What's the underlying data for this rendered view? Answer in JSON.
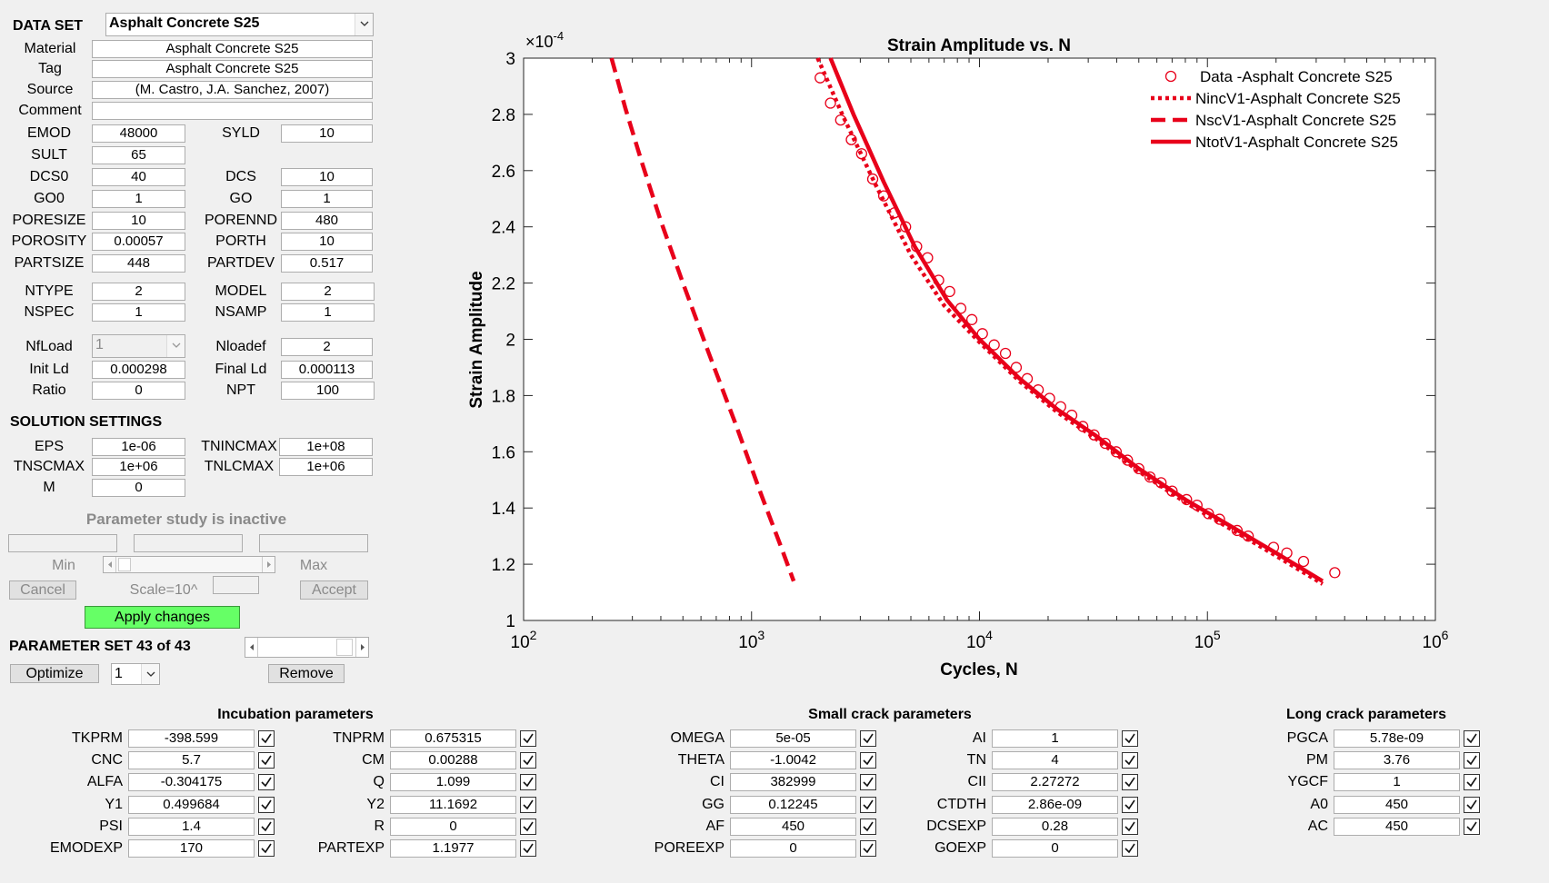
{
  "dataset": {
    "label": "DATA SET",
    "selected": "Asphalt Concrete S25"
  },
  "info": [
    {
      "label": "Material",
      "value": "Asphalt Concrete S25"
    },
    {
      "label": "Tag",
      "value": "Asphalt Concrete S25"
    },
    {
      "label": "Source",
      "value": "(M. Castro, J.A. Sanchez, 2007)"
    },
    {
      "label": "Comment",
      "value": ""
    }
  ],
  "props": [
    {
      "label": "EMOD",
      "value": "48000"
    },
    {
      "label": "SYLD",
      "value": "10"
    },
    {
      "label": "SULT",
      "value": "65"
    },
    {
      "label": "DCS0",
      "value": "40"
    },
    {
      "label": "DCS",
      "value": "10"
    },
    {
      "label": "GO0",
      "value": "1"
    },
    {
      "label": "GO",
      "value": "1"
    },
    {
      "label": "PORESIZE",
      "value": "10"
    },
    {
      "label": "PORENND",
      "value": "480"
    },
    {
      "label": "POROSITY",
      "value": "0.00057"
    },
    {
      "label": "PORTH",
      "value": "10"
    },
    {
      "label": "PARTSIZE",
      "value": "448"
    },
    {
      "label": "PARTDEV",
      "value": "0.517"
    },
    {
      "label": "NTYPE",
      "value": "2"
    },
    {
      "label": "MODEL",
      "value": "2"
    },
    {
      "label": "NSPEC",
      "value": "1"
    },
    {
      "label": "NSAMP",
      "value": "1"
    },
    {
      "label": "NfLoad",
      "value": "1"
    },
    {
      "label": "Nloadef",
      "value": "2"
    },
    {
      "label": "Init Ld",
      "value": "0.000298"
    },
    {
      "label": "Final Ld",
      "value": "0.000113"
    },
    {
      "label": "Ratio",
      "value": "0"
    },
    {
      "label": "NPT",
      "value": "100"
    }
  ],
  "solution": {
    "title": "SOLUTION SETTINGS",
    "fields": [
      {
        "label": "EPS",
        "value": "1e-06"
      },
      {
        "label": "TNINCMAX",
        "value": "1e+08"
      },
      {
        "label": "TNSCMAX",
        "value": "1e+06"
      },
      {
        "label": "TNLCMAX",
        "value": "1e+06"
      },
      {
        "label": "M",
        "value": "0"
      }
    ]
  },
  "study": {
    "status": "Parameter study is inactive",
    "min_label": "Min",
    "max_label": "Max",
    "cancel": "Cancel",
    "scale": "Scale=10^",
    "accept": "Accept"
  },
  "apply_label": "Apply changes",
  "param_set": {
    "label": "PARAMETER SET 43 of 43",
    "optimize": "Optimize",
    "opt_value": "1",
    "remove": "Remove"
  },
  "chart_data": {
    "type": "line",
    "title": "Strain Amplitude vs. N",
    "xlabel": "Cycles, N",
    "ylabel": "Strain Amplitude",
    "x_scale": "log",
    "xlim": [
      100,
      1000000
    ],
    "ylim": [
      1,
      3
    ],
    "y_multiplier": "×10",
    "y_multiplier_exp": "-4",
    "x_ticks": [
      {
        "base": "10",
        "exp": "2"
      },
      {
        "base": "10",
        "exp": "3"
      },
      {
        "base": "10",
        "exp": "4"
      },
      {
        "base": "10",
        "exp": "5"
      },
      {
        "base": "10",
        "exp": "6"
      }
    ],
    "y_ticks": [
      "1",
      "1.2",
      "1.4",
      "1.6",
      "1.8",
      "2",
      "2.2",
      "2.4",
      "2.6",
      "2.8",
      "3"
    ],
    "legend_position": "top-right",
    "grid": false,
    "color": "#e8001a",
    "series": [
      {
        "name": "Data -Asphalt Concrete S25",
        "style": "markers",
        "x": [
          2000,
          2220,
          2460,
          2740,
          3040,
          3400,
          3800,
          4240,
          4740,
          5300,
          5920,
          6620,
          7400,
          8280,
          9260,
          10300,
          11600,
          13000,
          14500,
          16200,
          18100,
          20300,
          22700,
          25400,
          28400,
          31800,
          35600,
          39800,
          44600,
          50000,
          56000,
          62600,
          70000,
          81000,
          90000,
          101000,
          113000,
          135000,
          151000,
          195000,
          223000,
          264000,
          362000
        ],
        "y": [
          2.93,
          2.84,
          2.78,
          2.71,
          2.66,
          2.57,
          2.51,
          2.45,
          2.4,
          2.33,
          2.29,
          2.21,
          2.17,
          2.11,
          2.07,
          2.02,
          1.98,
          1.95,
          1.9,
          1.86,
          1.82,
          1.79,
          1.76,
          1.73,
          1.69,
          1.66,
          1.63,
          1.6,
          1.57,
          1.54,
          1.51,
          1.49,
          1.46,
          1.43,
          1.41,
          1.38,
          1.36,
          1.32,
          1.3,
          1.26,
          1.24,
          1.21,
          1.17
        ]
      },
      {
        "name": "NincV1-Asphalt Concrete S25",
        "style": "dotted",
        "x": [
          1950,
          2500,
          3500,
          5000,
          7000,
          10000,
          15000,
          22000,
          32000,
          50000,
          80000,
          130000,
          200000,
          320000
        ],
        "y": [
          3.0,
          2.8,
          2.55,
          2.3,
          2.12,
          1.99,
          1.85,
          1.74,
          1.65,
          1.53,
          1.42,
          1.32,
          1.23,
          1.13
        ]
      },
      {
        "name": "NscV1-Asphalt Concrete S25",
        "style": "dashed",
        "x": [
          243,
          280,
          330,
          400,
          500,
          650,
          850,
          1100,
          1350,
          1530
        ],
        "y": [
          3.0,
          2.82,
          2.63,
          2.42,
          2.2,
          1.95,
          1.7,
          1.45,
          1.26,
          1.14
        ]
      },
      {
        "name": "NtotV1-Asphalt Concrete S25",
        "style": "solid",
        "x": [
          2220,
          2800,
          3800,
          5200,
          7200,
          10000,
          15000,
          22000,
          32000,
          50000,
          80000,
          130000,
          200000,
          320000
        ],
        "y": [
          3.0,
          2.8,
          2.56,
          2.33,
          2.14,
          2.0,
          1.86,
          1.75,
          1.66,
          1.54,
          1.43,
          1.33,
          1.24,
          1.14
        ]
      }
    ]
  },
  "groups": [
    {
      "title": "Incubation parameters",
      "columns": [
        [
          {
            "label": "TKPRM",
            "value": "-398.599",
            "checked": true
          },
          {
            "label": "CNC",
            "value": "5.7",
            "checked": true
          },
          {
            "label": "ALFA",
            "value": "-0.304175",
            "checked": true
          },
          {
            "label": "Y1",
            "value": "0.499684",
            "checked": true
          },
          {
            "label": "PSI",
            "value": "1.4",
            "checked": true
          },
          {
            "label": "EMODEXP",
            "value": "170",
            "checked": true
          }
        ],
        [
          {
            "label": "TNPRM",
            "value": "0.675315",
            "checked": true
          },
          {
            "label": "CM",
            "value": "0.00288",
            "checked": true
          },
          {
            "label": "Q",
            "value": "1.099",
            "checked": true
          },
          {
            "label": "Y2",
            "value": "11.1692",
            "checked": true
          },
          {
            "label": "R",
            "value": "0",
            "checked": true
          },
          {
            "label": "PARTEXP",
            "value": "1.1977",
            "checked": true
          }
        ]
      ]
    },
    {
      "title": "Small crack parameters",
      "columns": [
        [
          {
            "label": "OMEGA",
            "value": "5e-05",
            "checked": true
          },
          {
            "label": "THETA",
            "value": "-1.0042",
            "checked": true
          },
          {
            "label": "CI",
            "value": "382999",
            "checked": true
          },
          {
            "label": "GG",
            "value": "0.12245",
            "checked": true
          },
          {
            "label": "AF",
            "value": "450",
            "checked": true
          },
          {
            "label": "POREEXP",
            "value": "0",
            "checked": true
          }
        ],
        [
          {
            "label": "AI",
            "value": "1",
            "checked": true
          },
          {
            "label": "TN",
            "value": "4",
            "checked": true
          },
          {
            "label": "CII",
            "value": "2.27272",
            "checked": true
          },
          {
            "label": "CTDTH",
            "value": "2.86e-09",
            "checked": true
          },
          {
            "label": "DCSEXP",
            "value": "0.28",
            "checked": true
          },
          {
            "label": "GOEXP",
            "value": "0",
            "checked": true
          }
        ]
      ]
    },
    {
      "title": "Long crack parameters",
      "columns": [
        [
          {
            "label": "PGCA",
            "value": "5.78e-09",
            "checked": true
          },
          {
            "label": "PM",
            "value": "3.76",
            "checked": true
          },
          {
            "label": "YGCF",
            "value": "1",
            "checked": true
          },
          {
            "label": "A0",
            "value": "450",
            "checked": true
          },
          {
            "label": "AC",
            "value": "450",
            "checked": true
          }
        ]
      ]
    }
  ]
}
